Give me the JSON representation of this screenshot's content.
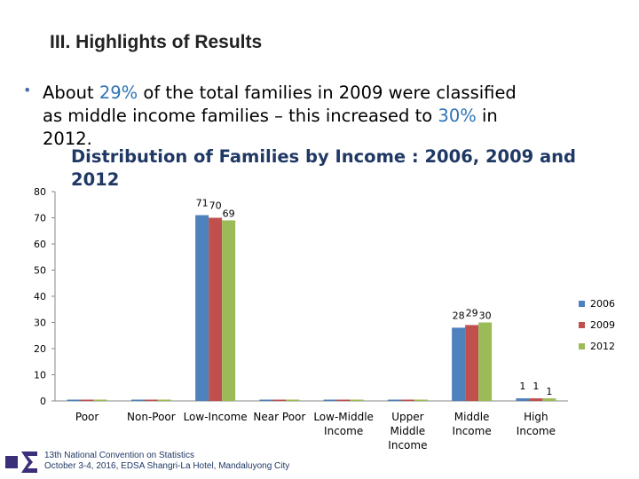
{
  "heading": "III. Highlights of Results",
  "bullet": {
    "line1_pre": "About ",
    "line1_hl": "29%",
    "line1_post": " of the total families in 2009 were classified",
    "line2_pre": "as middle income families – this increased to ",
    "line2_hl": "30%",
    "line2_post": " in",
    "line3": "2012."
  },
  "footer": {
    "line1": "13th National Convention on Statistics",
    "line2": "October 3-4, 2016, EDSA Shangri-La Hotel, Mandaluyong City"
  },
  "colors": {
    "highlight": "#2e74b5",
    "s2006": "#4f81bd",
    "s2009": "#c0504d",
    "s2012": "#9bbb59"
  },
  "chart_data": {
    "type": "bar",
    "title": "Distribution of Families by Income : 2006, 2009 and 2012",
    "categories": [
      "Poor",
      "Non-Poor",
      "Low-Income",
      "Near Poor",
      "Low-Middle Income",
      "Upper Middle Income",
      "Middle Income",
      "High Income"
    ],
    "category_lines": [
      [
        "Poor"
      ],
      [
        "Non-Poor"
      ],
      [
        "Low-Income"
      ],
      [
        "Near Poor"
      ],
      [
        "Low-Middle",
        "Income"
      ],
      [
        "Upper",
        "Middle",
        "Income"
      ],
      [
        "Middle",
        "Income"
      ],
      [
        "High",
        "Income"
      ]
    ],
    "series": [
      {
        "name": "2006",
        "values": [
          0,
          0,
          71,
          0,
          0,
          0,
          28,
          1
        ]
      },
      {
        "name": "2009",
        "values": [
          0,
          0,
          70,
          0,
          0,
          0,
          29,
          1
        ]
      },
      {
        "name": "2012",
        "values": [
          0,
          0,
          69,
          0,
          0,
          0,
          30,
          1
        ]
      }
    ],
    "data_labels": [
      {
        "category": 2,
        "series": 0,
        "text": "71"
      },
      {
        "category": 2,
        "series": 1,
        "text": "70"
      },
      {
        "category": 2,
        "series": 2,
        "text": "69"
      },
      {
        "category": 6,
        "series": 0,
        "text": "28"
      },
      {
        "category": 6,
        "series": 1,
        "text": "29"
      },
      {
        "category": 6,
        "series": 2,
        "text": "30"
      },
      {
        "category": 7,
        "series": 0,
        "text": "1"
      },
      {
        "category": 7,
        "series": 1,
        "text": "1"
      },
      {
        "category": 7,
        "series": 2,
        "text": "1"
      }
    ],
    "ylim": [
      0,
      80
    ],
    "yticks": [
      0,
      10,
      20,
      30,
      40,
      50,
      60,
      70,
      80
    ],
    "legend_position": "right",
    "grid": false
  }
}
